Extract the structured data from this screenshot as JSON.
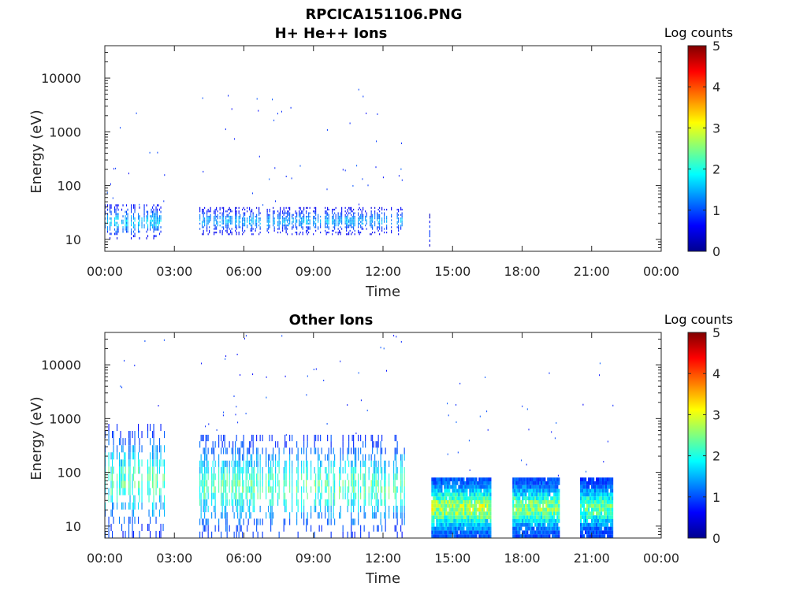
{
  "figure_title": "RPCICA151106.PNG",
  "chart_data": [
    {
      "type": "heatmap",
      "title": "H+ He++ Ions",
      "xlabel": "Time",
      "ylabel": "Energy (eV)",
      "y_scale": "log",
      "ylim": [
        6,
        40000
      ],
      "xlim_hours": [
        0,
        24
      ],
      "x_tick_labels": [
        "00:00",
        "03:00",
        "06:00",
        "09:00",
        "12:00",
        "15:00",
        "18:00",
        "21:00",
        "00:00"
      ],
      "y_tick_values": [
        10,
        100,
        1000,
        10000
      ],
      "y_tick_labels": [
        "10",
        "100",
        "1000",
        "10000"
      ],
      "colorbar": {
        "label": "Log counts",
        "range": [
          0,
          5
        ],
        "tick_labels": [
          "0",
          "1",
          "2",
          "3",
          "4",
          "5"
        ]
      },
      "data_intervals": [
        {
          "start": "00:00",
          "end": "02:35",
          "emin": 10,
          "emax": 45,
          "peak_log_counts": 1.8
        },
        {
          "start": "04:05",
          "end": "12:55",
          "emin": 12,
          "emax": 40,
          "peak_log_counts": 1.6
        },
        {
          "start": "14:00",
          "end": "14:05",
          "emin": 6,
          "emax": 30,
          "peak_log_counts": 1.0
        }
      ]
    },
    {
      "type": "heatmap",
      "title": "Other Ions",
      "xlabel": "Time",
      "ylabel": "Energy (eV)",
      "y_scale": "log",
      "ylim": [
        6,
        40000
      ],
      "xlim_hours": [
        0,
        24
      ],
      "x_tick_labels": [
        "00:00",
        "03:00",
        "06:00",
        "09:00",
        "12:00",
        "15:00",
        "18:00",
        "21:00",
        "00:00"
      ],
      "y_tick_values": [
        10,
        100,
        1000,
        10000
      ],
      "y_tick_labels": [
        "10",
        "100",
        "1000",
        "10000"
      ],
      "colorbar": {
        "label": "Log counts",
        "range": [
          0,
          5
        ],
        "tick_labels": [
          "0",
          "1",
          "2",
          "3",
          "4",
          "5"
        ]
      },
      "data_intervals": [
        {
          "start": "00:00",
          "end": "02:35",
          "emin": 6,
          "emax": 800,
          "peak_log_counts": 2.4
        },
        {
          "start": "04:05",
          "end": "12:55",
          "emin": 6,
          "emax": 500,
          "peak_log_counts": 2.5
        },
        {
          "start": "14:05",
          "end": "16:40",
          "emin": 6,
          "emax": 80,
          "peak_log_counts": 3.0
        },
        {
          "start": "17:35",
          "end": "19:35",
          "emin": 6,
          "emax": 80,
          "peak_log_counts": 2.8
        },
        {
          "start": "20:30",
          "end": "21:55",
          "emin": 6,
          "emax": 80,
          "peak_log_counts": 2.6
        }
      ]
    }
  ]
}
